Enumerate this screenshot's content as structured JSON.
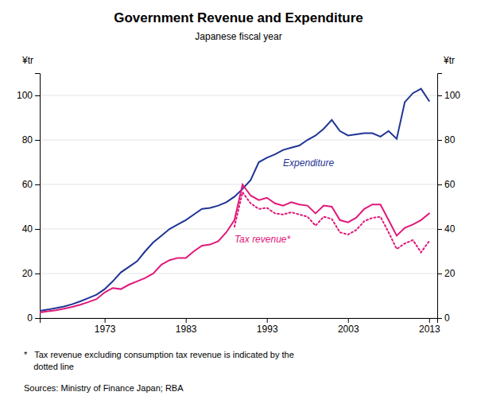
{
  "chart_data": {
    "type": "line",
    "title": "Government Revenue and Expenditure",
    "subtitle": "Japanese fiscal year",
    "ylabel": "¥tr",
    "y2label": "¥tr",
    "annotations": [
      "*   Tax revenue excluding consumption tax revenue is indicated by the\n    dotted line",
      "Sources: Ministry of Finance Japan; RBA"
    ],
    "x": [
      1965,
      1966,
      1967,
      1968,
      1969,
      1970,
      1971,
      1972,
      1973,
      1974,
      1975,
      1976,
      1977,
      1978,
      1979,
      1980,
      1981,
      1982,
      1983,
      1984,
      1985,
      1986,
      1987,
      1988,
      1989,
      1990,
      1991,
      1992,
      1993,
      1994,
      1995,
      1996,
      1997,
      1998,
      1999,
      2000,
      2001,
      2002,
      2003,
      2004,
      2005,
      2006,
      2007,
      2008,
      2009,
      2010,
      2011,
      2012,
      2013
    ],
    "series": [
      {
        "name": "Expenditure",
        "color": "#1F3494",
        "line_style": "solid",
        "values": [
          3.2,
          3.8,
          4.5,
          5.2,
          6.2,
          7.5,
          9.0,
          10.5,
          13.0,
          16.5,
          20.5,
          23.0,
          25.5,
          30.0,
          34.0,
          37.0,
          40.0,
          42.0,
          44.0,
          46.5,
          49.0,
          49.5,
          50.5,
          52.0,
          54.5,
          58.0,
          62.0,
          70.0,
          72.0,
          73.5,
          75.5,
          76.5,
          77.5,
          80.0,
          82.0,
          85.0,
          89.0,
          84.0,
          82.0,
          82.5,
          83.0,
          83.0,
          81.5,
          84.0,
          80.5,
          97.0,
          101.0,
          103.0,
          97.5
        ]
      },
      {
        "name": "Tax revenue*",
        "color": "#E0187A",
        "line_style": "solid",
        "values": [
          2.5,
          3.0,
          3.5,
          4.2,
          5.0,
          6.0,
          7.2,
          8.5,
          11.5,
          13.5,
          13.0,
          15.0,
          16.5,
          18.0,
          20.0,
          24.0,
          26.0,
          27.0,
          27.0,
          30.0,
          32.5,
          33.0,
          34.5,
          38.5,
          44.0,
          60.0,
          55.0,
          53.0,
          54.0,
          51.5,
          50.5,
          52.0,
          51.0,
          50.5,
          47.0,
          50.5,
          50.0,
          44.0,
          43.0,
          45.0,
          49.0,
          51.0,
          51.0,
          44.0,
          37.0,
          40.5,
          42.0,
          44.0,
          47.0
        ]
      },
      {
        "color": "#E0187A",
        "line_style": "dotted",
        "values": [
          null,
          null,
          null,
          null,
          null,
          null,
          null,
          null,
          null,
          null,
          null,
          null,
          null,
          null,
          null,
          null,
          null,
          null,
          null,
          null,
          null,
          null,
          null,
          null,
          41.0,
          56.5,
          51.5,
          49.0,
          49.5,
          47.0,
          46.5,
          47.5,
          46.5,
          45.5,
          41.5,
          45.5,
          44.5,
          38.5,
          37.5,
          39.5,
          43.5,
          45.0,
          45.5,
          38.5,
          31.0,
          33.5,
          35.0,
          29.5,
          34.5
        ]
      }
    ],
    "xlim": [
      1965,
      2014
    ],
    "xticks": [
      1973,
      1983,
      1993,
      2003,
      2013
    ],
    "ylim": [
      0,
      110
    ],
    "yticks": [
      0,
      20,
      40,
      60,
      80,
      100
    ],
    "y2lim": [
      0,
      110
    ],
    "y2ticks": [
      0,
      20,
      40,
      60,
      80,
      100
    ],
    "grid": true
  }
}
